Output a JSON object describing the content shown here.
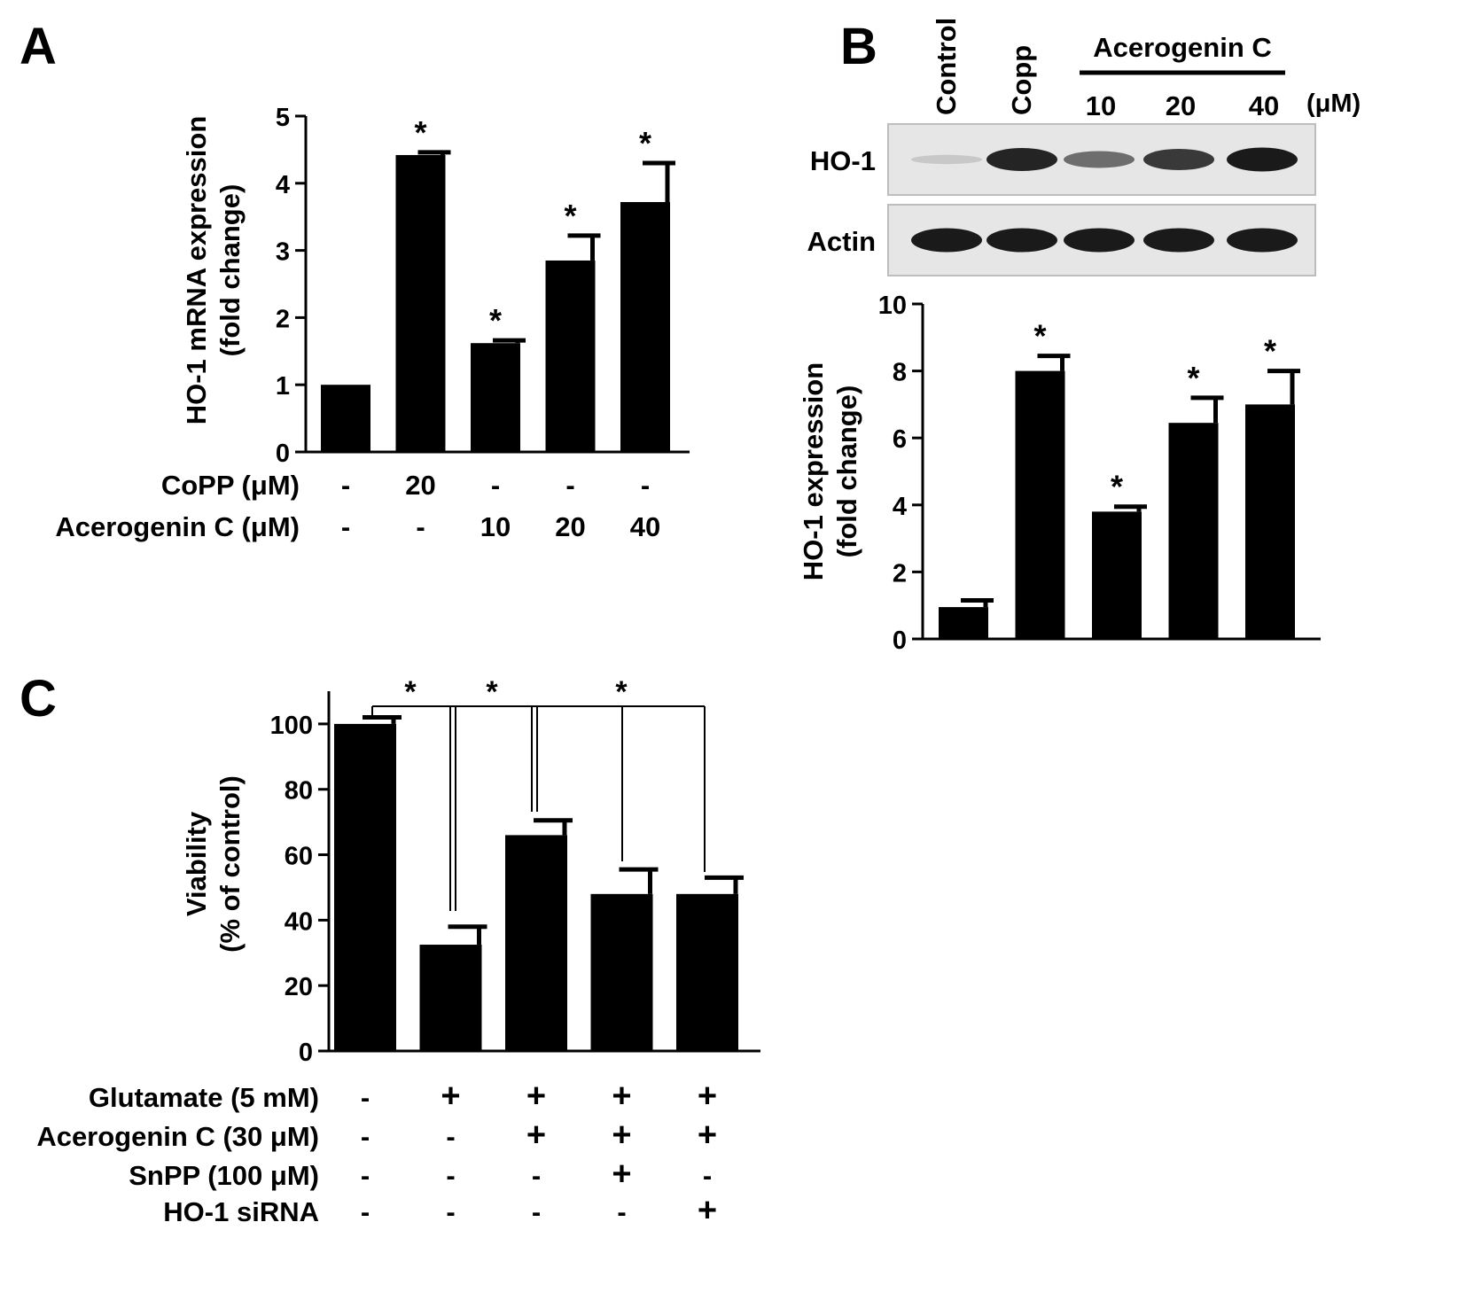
{
  "panels": {
    "A": {
      "letter": "A"
    },
    "B": {
      "letter": "B"
    },
    "C": {
      "letter": "C"
    }
  },
  "chart_data": [
    {
      "id": "A",
      "type": "bar",
      "ylabel": [
        "HO-1 mRNA expression",
        "(fold change)"
      ],
      "ylim": [
        0,
        5
      ],
      "yticks": [
        0,
        1,
        2,
        3,
        4,
        5
      ],
      "values": [
        1.0,
        4.42,
        1.62,
        2.85,
        3.72
      ],
      "errors": [
        0,
        0.04,
        0.04,
        0.37,
        0.58
      ],
      "significance": [
        "",
        "*",
        "*",
        "*",
        "*"
      ],
      "conditions": [
        {
          "label": "CoPP (μM)",
          "values": [
            "-",
            "20",
            "-",
            "-",
            "-"
          ]
        },
        {
          "label": "Acerogenin C (μM)",
          "values": [
            "-",
            "-",
            "10",
            "20",
            "40"
          ]
        }
      ]
    },
    {
      "id": "B",
      "type": "bar",
      "ylabel": [
        "HO-1 expression",
        "(fold change)"
      ],
      "ylim": [
        0,
        10
      ],
      "yticks": [
        0,
        2,
        4,
        6,
        8,
        10
      ],
      "values": [
        0.95,
        8.0,
        3.8,
        6.45,
        7.0
      ],
      "errors": [
        0.2,
        0.45,
        0.15,
        0.75,
        1.0
      ],
      "significance": [
        "",
        "*",
        "*",
        "*",
        "*"
      ],
      "blot": {
        "lanes": [
          "Control",
          "Copp",
          "10",
          "20",
          "40"
        ],
        "group_label": "Acerogenin C",
        "unit": "(μM)",
        "rows": [
          {
            "label": "HO-1",
            "intensity": [
              0.12,
              0.9,
              0.55,
              0.8,
              0.95
            ]
          },
          {
            "label": "Actin",
            "intensity": [
              0.95,
              0.95,
              0.95,
              0.95,
              0.95
            ]
          }
        ]
      }
    },
    {
      "id": "C",
      "type": "bar",
      "ylabel": [
        "Viability",
        "(% of control)"
      ],
      "ylim": [
        0,
        110
      ],
      "yticks": [
        0,
        20,
        40,
        60,
        80,
        100
      ],
      "values": [
        100,
        32.5,
        66,
        48,
        48
      ],
      "errors": [
        2,
        5.5,
        4.5,
        7.5,
        5
      ],
      "brackets": [
        {
          "from": 0,
          "to": 1,
          "label": "*"
        },
        {
          "from": 1,
          "to": 2,
          "label": "*"
        },
        {
          "from": 2,
          "to": [
            3,
            4
          ],
          "label": "*"
        }
      ],
      "conditions": [
        {
          "label": "Glutamate (5 mM)",
          "values": [
            "-",
            "+",
            "+",
            "+",
            "+"
          ]
        },
        {
          "label": "Acerogenin C (30 μM)",
          "values": [
            "-",
            "-",
            "+",
            "+",
            "+"
          ]
        },
        {
          "label": "SnPP (100 μM)",
          "values": [
            "-",
            "-",
            "-",
            "+",
            "-"
          ]
        },
        {
          "label": "HO-1 siRNA",
          "values": [
            "-",
            "-",
            "-",
            "-",
            "+"
          ]
        }
      ]
    }
  ]
}
